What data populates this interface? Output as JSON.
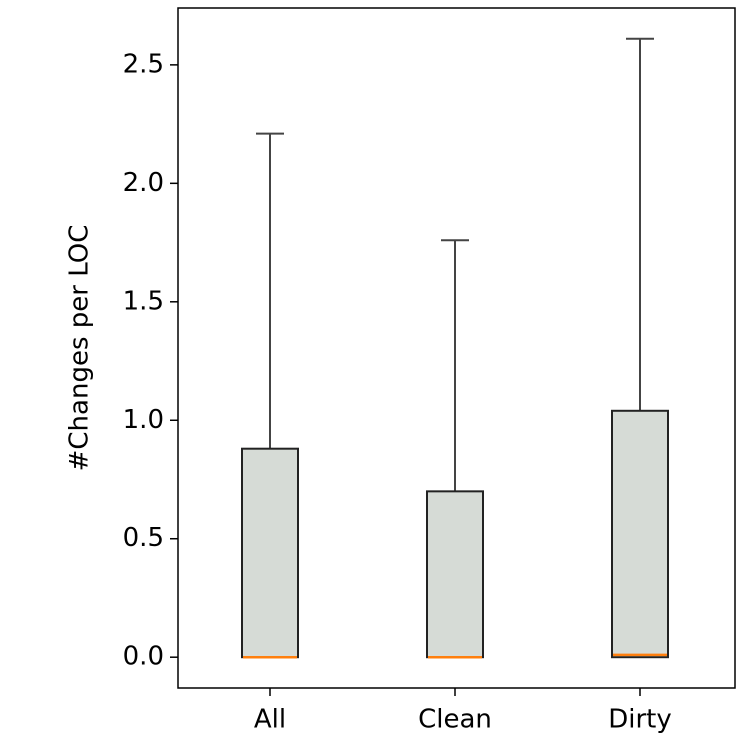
{
  "chart_data": {
    "type": "box",
    "y_label": "#Changes per LOC",
    "categories": [
      "All",
      "Clean",
      "Dirty"
    ],
    "boxes": [
      {
        "min": 0,
        "q1": 0,
        "median": 0,
        "q3": 0.88,
        "max": 2.21
      },
      {
        "min": 0,
        "q1": 0,
        "median": 0,
        "q3": 0.7,
        "max": 1.76
      },
      {
        "min": 0,
        "q1": 0,
        "median": 0.01,
        "q3": 1.04,
        "max": 2.61
      }
    ],
    "box_color": "#d6dbd6",
    "median_color": "#ff7f0e",
    "ylim": [
      -0.13,
      2.74
    ],
    "yticks": [
      {
        "value": 0,
        "label": "0.0"
      },
      0.5,
      {
        "value": 1,
        "label": "1.0"
      },
      1.5,
      {
        "value": 2,
        "label": "2.0"
      },
      2.5
    ]
  }
}
